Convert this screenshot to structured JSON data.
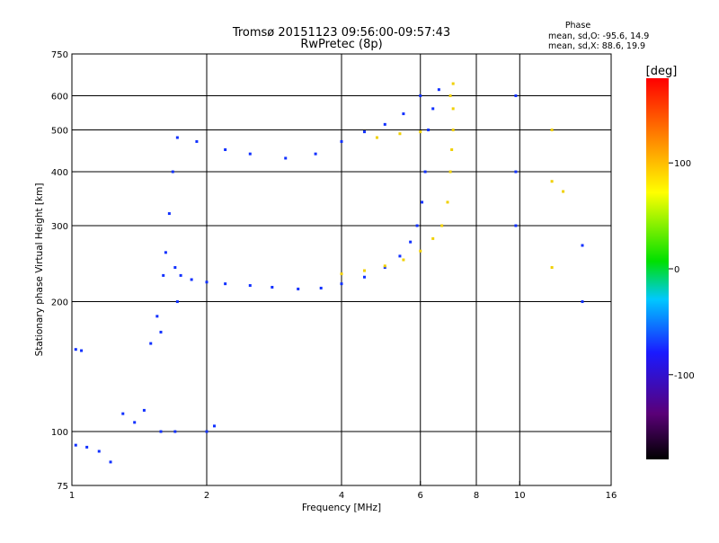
{
  "chart_data": {
    "type": "scatter",
    "title": "Tromsø 20151123 09:56:00-09:57:43",
    "subtitle": "RwPretec (8p)",
    "xlabel": "Frequency [MHz]",
    "ylabel": "Stationary phase Virtual Height [km]",
    "x_scale": "log",
    "y_scale": "log",
    "xlim": [
      1,
      16
    ],
    "ylim": [
      75,
      750
    ],
    "x_ticks": [
      1,
      2,
      4,
      6,
      8,
      10,
      16
    ],
    "x_tick_labels": [
      "1",
      "2",
      "4",
      "6",
      "8",
      "10",
      "16"
    ],
    "x_grid": [
      2,
      4,
      6,
      8,
      10
    ],
    "y_ticks": [
      75,
      100,
      200,
      300,
      400,
      500,
      600,
      750
    ],
    "y_tick_labels": [
      "75",
      "100",
      "200",
      "300",
      "400",
      "500",
      "600",
      "750"
    ],
    "y_grid": [
      100,
      200,
      300,
      400,
      500,
      600
    ],
    "grid": true,
    "phase_info": {
      "heading": "Phase",
      "line_o": "mean, sd,O: -95.6, 14.9",
      "line_x": "mean, sd,X:  88.6, 19.9"
    },
    "colorbar": {
      "label": "[deg]",
      "range": [
        -180,
        180
      ],
      "ticks": [
        100,
        0,
        -100
      ],
      "tick_labels": [
        "100",
        "0",
        "-100"
      ],
      "colormap": "rainbow (black-purple-blue-cyan-green-yellow-orange-red)"
    },
    "series": [
      {
        "name": "O",
        "color": "#1030ff",
        "points": [
          [
            1.02,
            155
          ],
          [
            1.05,
            154
          ],
          [
            1.02,
            93
          ],
          [
            1.08,
            92
          ],
          [
            1.15,
            90
          ],
          [
            1.22,
            85
          ],
          [
            1.3,
            110
          ],
          [
            1.38,
            105
          ],
          [
            1.45,
            112
          ],
          [
            1.5,
            160
          ],
          [
            1.55,
            185
          ],
          [
            1.58,
            170
          ],
          [
            1.6,
            230
          ],
          [
            1.62,
            260
          ],
          [
            1.65,
            320
          ],
          [
            1.68,
            400
          ],
          [
            1.7,
            240
          ],
          [
            1.72,
            200
          ],
          [
            1.75,
            230
          ],
          [
            1.85,
            225
          ],
          [
            2.0,
            222
          ],
          [
            2.2,
            220
          ],
          [
            2.5,
            218
          ],
          [
            2.8,
            216
          ],
          [
            3.2,
            214
          ],
          [
            3.6,
            215
          ],
          [
            4.0,
            220
          ],
          [
            4.5,
            228
          ],
          [
            5.0,
            240
          ],
          [
            5.4,
            255
          ],
          [
            5.7,
            275
          ],
          [
            5.9,
            300
          ],
          [
            6.05,
            340
          ],
          [
            6.15,
            400
          ],
          [
            6.25,
            500
          ],
          [
            6.4,
            560
          ],
          [
            6.6,
            620
          ],
          [
            1.72,
            480
          ],
          [
            1.9,
            470
          ],
          [
            2.2,
            450
          ],
          [
            2.5,
            440
          ],
          [
            3.0,
            430
          ],
          [
            3.5,
            440
          ],
          [
            4.0,
            470
          ],
          [
            4.5,
            495
          ],
          [
            5.0,
            515
          ],
          [
            5.5,
            545
          ],
          [
            6.0,
            600
          ],
          [
            1.7,
            100
          ],
          [
            1.58,
            100
          ],
          [
            2.0,
            100
          ],
          [
            2.08,
            103
          ],
          [
            9.8,
            600
          ],
          [
            9.8,
            300
          ],
          [
            9.8,
            400
          ],
          [
            13.8,
            270
          ],
          [
            13.8,
            200
          ]
        ]
      },
      {
        "name": "X",
        "color": "#f0d000",
        "points": [
          [
            4.0,
            232
          ],
          [
            4.5,
            236
          ],
          [
            5.0,
            242
          ],
          [
            5.5,
            250
          ],
          [
            6.0,
            262
          ],
          [
            6.4,
            280
          ],
          [
            6.7,
            300
          ],
          [
            6.9,
            340
          ],
          [
            7.0,
            400
          ],
          [
            7.05,
            450
          ],
          [
            7.1,
            500
          ],
          [
            7.1,
            560
          ],
          [
            7.0,
            600
          ],
          [
            7.1,
            640
          ],
          [
            4.8,
            480
          ],
          [
            5.4,
            490
          ],
          [
            6.0,
            495
          ],
          [
            11.8,
            500
          ],
          [
            11.8,
            380
          ],
          [
            11.8,
            240
          ],
          [
            12.5,
            360
          ]
        ]
      }
    ]
  }
}
